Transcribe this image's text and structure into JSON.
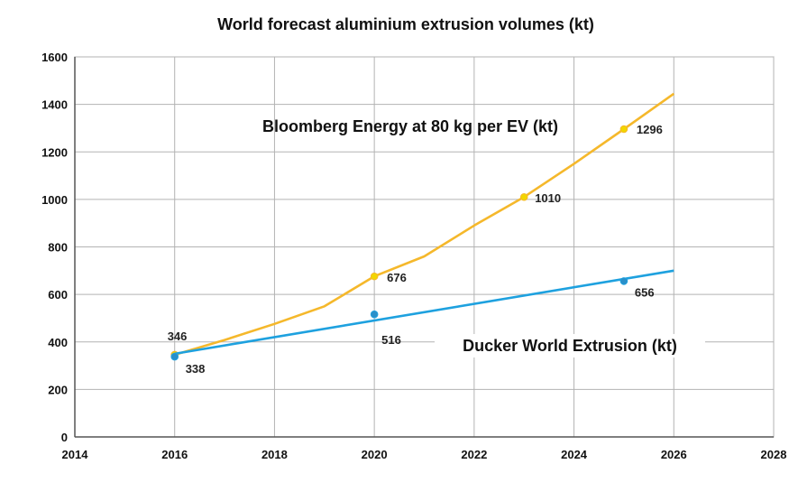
{
  "chart_data": {
    "type": "line",
    "title": "World forecast aluminium extrusion volumes (kt)",
    "xlabel": "",
    "ylabel": "",
    "xlim": [
      2014,
      2028
    ],
    "ylim": [
      0,
      1600
    ],
    "x_ticks": [
      "2014",
      "2016",
      "2018",
      "2020",
      "2022",
      "2024",
      "2026",
      "2028"
    ],
    "y_ticks": [
      "0",
      "200",
      "400",
      "600",
      "800",
      "1000",
      "1200",
      "1400",
      "1600"
    ],
    "grid": true,
    "series": [
      {
        "name": "Bloomberg Energy at 80 kg per EV (kt)",
        "color": "#f5b82b",
        "marker_color": "#f2d600",
        "points": [
          {
            "x": 2016,
            "y": 346,
            "label": "346"
          },
          {
            "x": 2020,
            "y": 676,
            "label": "676"
          },
          {
            "x": 2023,
            "y": 1010,
            "label": "1010"
          },
          {
            "x": 2025,
            "y": 1296,
            "label": "1296"
          }
        ],
        "trend": [
          [
            2016,
            346
          ],
          [
            2017,
            408
          ],
          [
            2018,
            476
          ],
          [
            2019,
            550
          ],
          [
            2020,
            676
          ],
          [
            2021,
            760
          ],
          [
            2022,
            890
          ],
          [
            2023,
            1010
          ],
          [
            2024,
            1150
          ],
          [
            2025,
            1296
          ],
          [
            2026,
            1445
          ]
        ]
      },
      {
        "name": "Ducker World Extrusion (kt)",
        "color": "#1ea1df",
        "marker_color": "#2a8fc9",
        "points": [
          {
            "x": 2016,
            "y": 338,
            "label": "338"
          },
          {
            "x": 2020,
            "y": 516,
            "label": "516"
          },
          {
            "x": 2025,
            "y": 656,
            "label": "656"
          }
        ],
        "trend": [
          [
            2016,
            350
          ],
          [
            2026,
            700
          ]
        ]
      }
    ]
  }
}
